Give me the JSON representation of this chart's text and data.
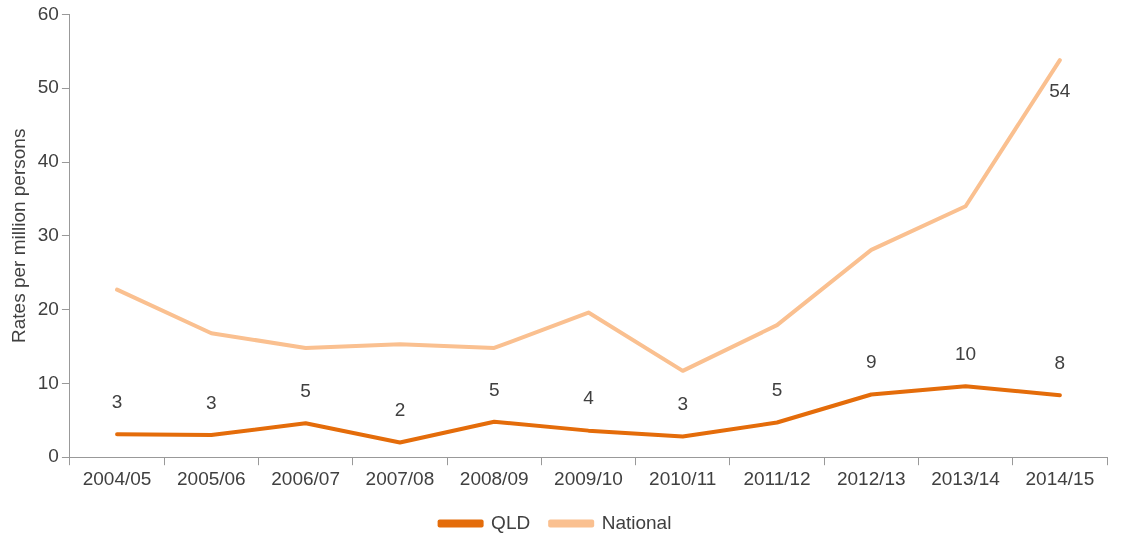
{
  "chart_data": {
    "type": "line",
    "ylabel": "Rates per million persons",
    "categories": [
      "2004/05",
      "2005/06",
      "2006/07",
      "2007/08",
      "2008/09",
      "2009/10",
      "2010/11",
      "2011/12",
      "2012/13",
      "2013/14",
      "2014/15"
    ],
    "series": [
      {
        "name": "QLD",
        "color": "#e46c0a",
        "values": [
          3.1,
          3.0,
          4.6,
          2.0,
          4.8,
          3.6,
          2.8,
          4.7,
          8.5,
          9.6,
          8.4
        ],
        "value_labels": [
          "3",
          "3",
          "5",
          "2",
          "5",
          "4",
          "3",
          "5",
          "9",
          "10",
          "8"
        ]
      },
      {
        "name": "National",
        "color": "#fac090",
        "values": [
          22.7,
          16.8,
          14.8,
          15.3,
          14.8,
          19.6,
          11.7,
          17.9,
          28.1,
          34.0,
          53.8
        ],
        "value_labels": [
          null,
          null,
          null,
          null,
          null,
          null,
          null,
          null,
          null,
          null,
          "54"
        ]
      }
    ],
    "ylim": [
      0,
      60
    ],
    "yticks": [
      0,
      10,
      20,
      30,
      40,
      50,
      60
    ],
    "grid": false,
    "legend": "bottom",
    "marker": "none",
    "line_style": "solid"
  }
}
